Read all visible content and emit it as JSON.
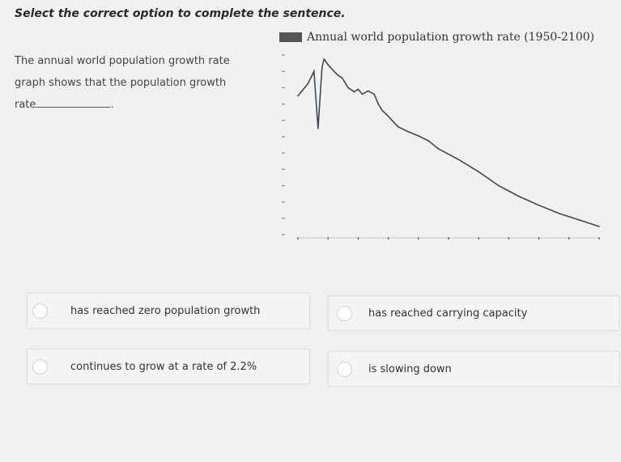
{
  "instruction": "Select the correct option to complete the sentence.",
  "question": {
    "part1": "The annual world population growth rate graph shows that the population growth rate",
    "end": "."
  },
  "options": [
    {
      "label": "has reached zero population growth"
    },
    {
      "label": "has reached carrying capacity"
    },
    {
      "label": "continues to grow at a rate of 2.2%"
    },
    {
      "label": "is slowing down"
    }
  ],
  "chart_data": {
    "type": "line",
    "title": "Annual world population growth rate (1950-2100)",
    "xlim": [
      1950,
      2100
    ],
    "ylim": [
      0,
      2.2
    ],
    "grid": false,
    "series": [
      {
        "x": [
          1950,
          1955,
          1958,
          1960,
          1962,
          1963,
          1965,
          1968,
          1970,
          1972,
          1975,
          1978,
          1980,
          1982,
          1985,
          1988,
          1990,
          1992,
          1995,
          1998,
          2000,
          2005,
          2010,
          2015,
          2020,
          2030,
          2040,
          2050,
          2060,
          2070,
          2080,
          2090,
          2100
        ],
        "y": [
          1.7,
          1.85,
          2.0,
          1.3,
          2.05,
          2.15,
          2.08,
          2.0,
          1.95,
          1.92,
          1.8,
          1.75,
          1.78,
          1.72,
          1.76,
          1.72,
          1.6,
          1.52,
          1.45,
          1.37,
          1.32,
          1.26,
          1.21,
          1.15,
          1.05,
          0.92,
          0.77,
          0.6,
          0.47,
          0.36,
          0.26,
          0.18,
          0.1
        ]
      }
    ]
  }
}
